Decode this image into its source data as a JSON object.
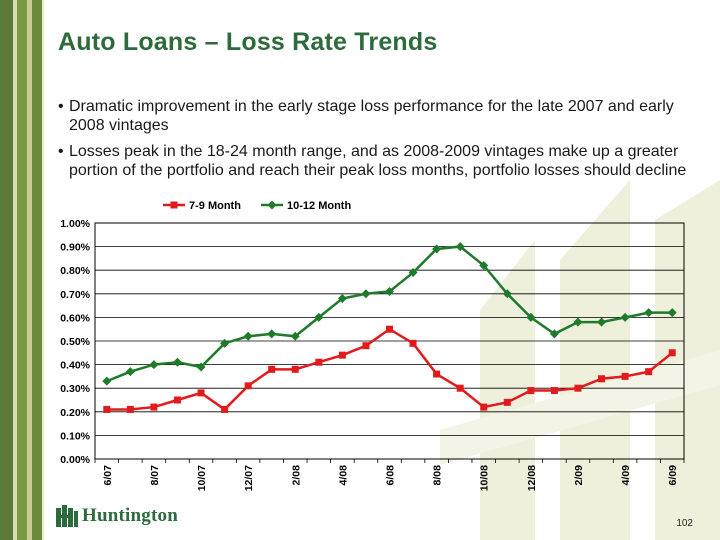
{
  "slide": {
    "title": "Auto Loans – Loss Rate Trends",
    "bullets": [
      "Dramatic improvement in the early stage loss performance for the late 2007 and early 2008 vintages",
      "Losses peak in the 18-24 month range, and as 2008-2009 vintages make up a greater portion of the portfolio and reach their peak loss months, portfolio losses should decline"
    ],
    "bullet_glyph": "•",
    "logo_text": "Huntington",
    "logo_icon": "huntington-logo-icon",
    "page_number": "102"
  },
  "colors": {
    "title": "#2e6b3c",
    "series_7_9": "#e31a1c",
    "series_10_12": "#1e7b2a",
    "sidebar": "#6b8a3c"
  },
  "chart_data": {
    "type": "line",
    "title": "",
    "xlabel": "",
    "ylabel": "",
    "ylim": [
      0,
      0.01
    ],
    "y_ticks": [
      "0.00%",
      "0.10%",
      "0.20%",
      "0.30%",
      "0.40%",
      "0.50%",
      "0.60%",
      "0.70%",
      "0.80%",
      "0.90%",
      "1.00%"
    ],
    "grid": true,
    "legend_position": "top-center",
    "categories": [
      "6/07",
      "7/07",
      "8/07",
      "9/07",
      "10/07",
      "11/07",
      "12/07",
      "1/08",
      "2/08",
      "3/08",
      "4/08",
      "5/08",
      "6/08",
      "7/08",
      "8/08",
      "9/08",
      "10/08",
      "11/08",
      "12/08",
      "1/09",
      "2/09",
      "3/09",
      "4/09",
      "5/09",
      "6/09"
    ],
    "x_tick_labels": [
      "6/07",
      "",
      "8/07",
      "",
      "10/07",
      "",
      "12/07",
      "",
      "2/08",
      "",
      "4/08",
      "",
      "6/08",
      "",
      "8/08",
      "",
      "10/08",
      "",
      "12/08",
      "",
      "2/09",
      "",
      "4/09",
      "",
      "6/09"
    ],
    "series": [
      {
        "name": "7-9 Month",
        "color": "#e31a1c",
        "marker": "square",
        "values": [
          0.0021,
          0.0021,
          0.0022,
          0.0025,
          0.0028,
          0.0021,
          0.0031,
          0.0038,
          0.0038,
          0.0041,
          0.0044,
          0.0048,
          0.0055,
          0.0049,
          0.0036,
          0.003,
          0.0022,
          0.0024,
          0.0029,
          0.0029,
          0.003,
          0.0034,
          0.0035,
          0.0037,
          0.0045
        ]
      },
      {
        "name": "10-12 Month",
        "color": "#1e7b2a",
        "marker": "diamond",
        "values": [
          0.0033,
          0.0037,
          0.004,
          0.0041,
          0.0039,
          0.0049,
          0.0052,
          0.0053,
          0.0052,
          0.006,
          0.0068,
          0.007,
          0.0071,
          0.0079,
          0.0089,
          0.009,
          0.0082,
          0.007,
          0.006,
          0.0053,
          0.0058,
          0.0058,
          0.006,
          0.0062,
          0.0062
        ]
      }
    ]
  }
}
